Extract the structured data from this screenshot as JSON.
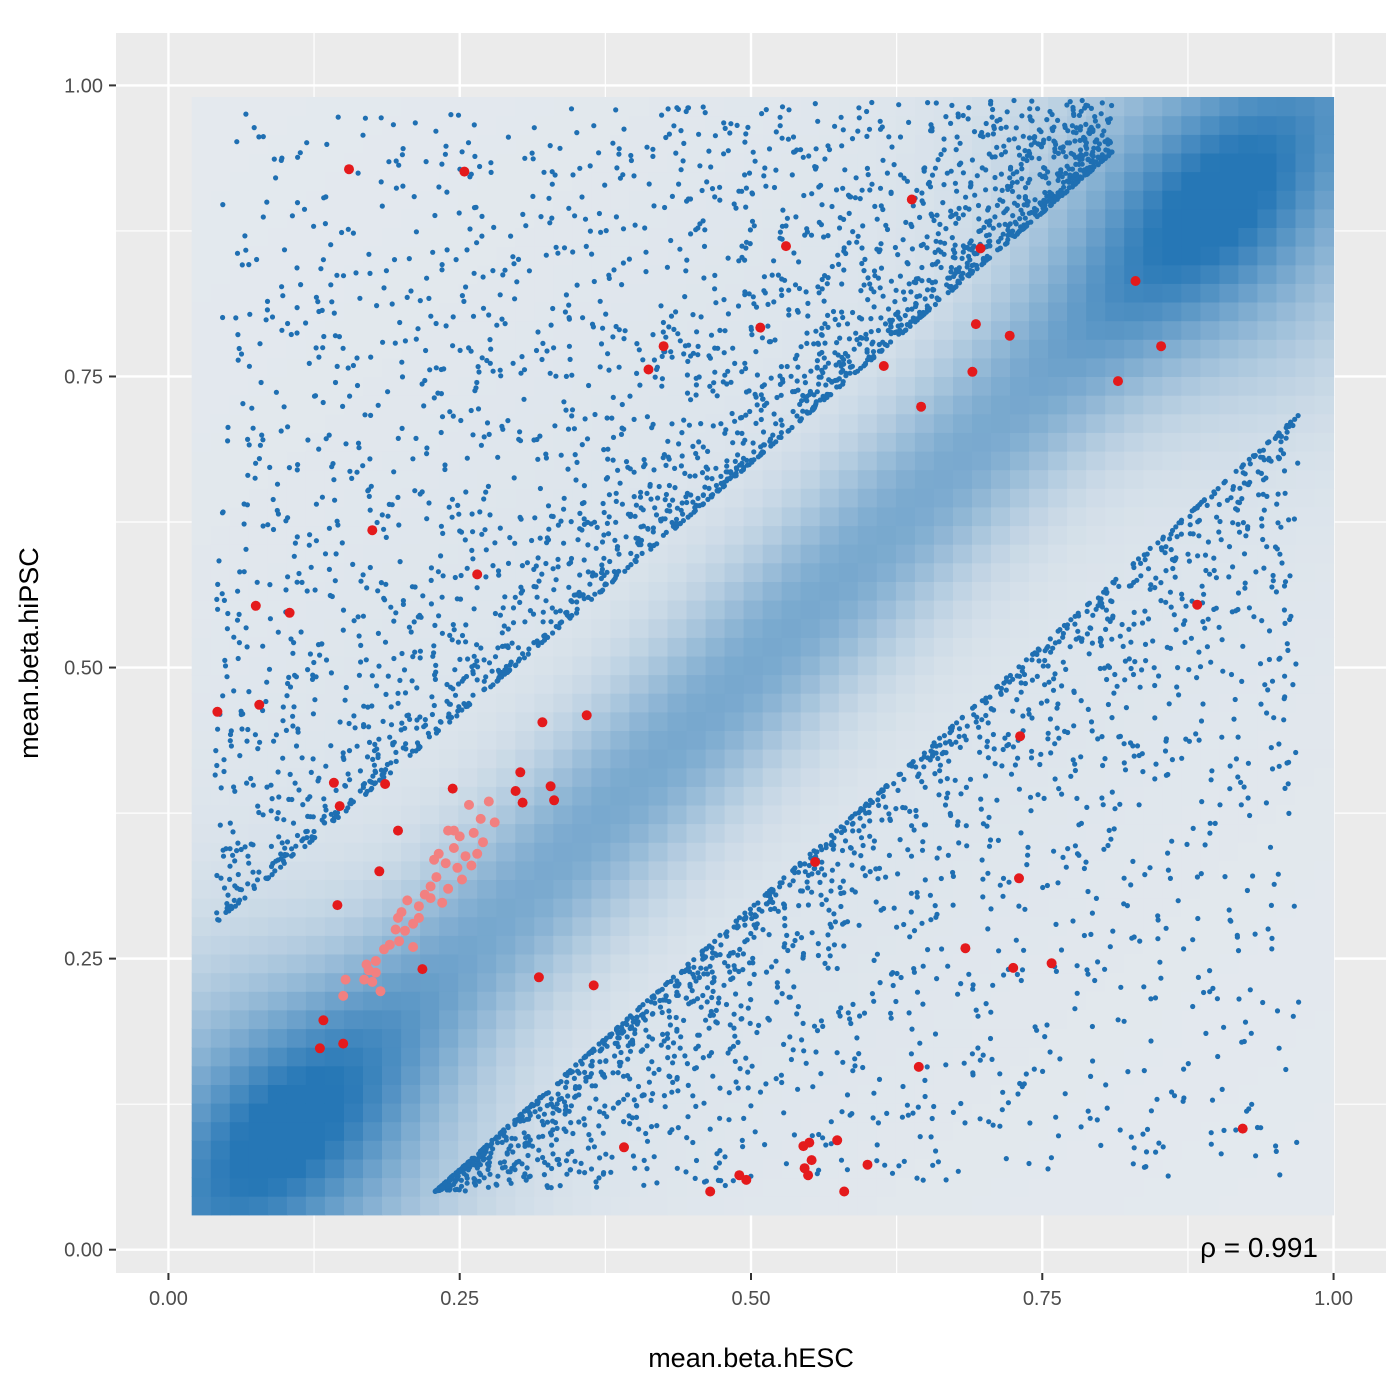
{
  "chart_data": {
    "type": "scatter",
    "title": "",
    "xlabel": "mean.beta.hESC",
    "ylabel": "mean.beta.hiPSC",
    "xlim": [
      -0.045,
      1.045
    ],
    "ylim": [
      -0.02,
      1.045
    ],
    "x_ticks": [
      0.0,
      0.25,
      0.5,
      0.75,
      1.0
    ],
    "x_tick_labels": [
      "0.00",
      "0.25",
      "0.50",
      "0.75",
      "1.00"
    ],
    "y_ticks": [
      0.0,
      0.25,
      0.5,
      0.75,
      1.0
    ],
    "y_tick_labels": [
      "0.00",
      "0.25",
      "0.50",
      "0.75",
      "1.00"
    ],
    "grid": true,
    "legend": "none",
    "annotation": {
      "text": "ρ = 0.991",
      "position": "bottom-right"
    },
    "density_background": {
      "description": "2D density of all probes shown as blue heat tiles",
      "x_range": [
        0.02,
        1.0
      ],
      "y_range": [
        0.03,
        0.99
      ],
      "peaks": [
        [
          0.1,
          0.1
        ],
        [
          0.9,
          0.9
        ]
      ],
      "color_low": "#e4e9ee",
      "color_high": "#2677b6"
    },
    "colors": {
      "panel_background": "#ebebeb",
      "grid": "#ffffff",
      "blue_points": "#1f6fb2",
      "red_points": "#e41a1c",
      "pink_points": "#f28080"
    },
    "series": [
      {
        "name": "",
        "color": "#1f6fb2",
        "note": "points above diagonal band (sampled representation)",
        "region": "upper",
        "approx_count": 2600
      },
      {
        "name": "",
        "color": "#1f6fb2",
        "note": "points below diagonal band (sampled representation)",
        "region": "lower",
        "approx_count": 2000
      },
      {
        "name": "",
        "color": "#e41a1c",
        "points": [
          [
            0.155,
            0.928
          ],
          [
            0.254,
            0.926
          ],
          [
            0.638,
            0.902
          ],
          [
            0.53,
            0.862
          ],
          [
            0.697,
            0.86
          ],
          [
            0.83,
            0.832
          ],
          [
            0.508,
            0.792
          ],
          [
            0.693,
            0.795
          ],
          [
            0.722,
            0.785
          ],
          [
            0.852,
            0.776
          ],
          [
            0.425,
            0.776
          ],
          [
            0.412,
            0.756
          ],
          [
            0.614,
            0.759
          ],
          [
            0.69,
            0.754
          ],
          [
            0.815,
            0.746
          ],
          [
            0.646,
            0.724
          ],
          [
            0.175,
            0.618
          ],
          [
            0.265,
            0.58
          ],
          [
            0.075,
            0.553
          ],
          [
            0.104,
            0.547
          ],
          [
            0.883,
            0.554
          ],
          [
            0.042,
            0.462
          ],
          [
            0.078,
            0.468
          ],
          [
            0.359,
            0.459
          ],
          [
            0.321,
            0.453
          ],
          [
            0.731,
            0.441
          ],
          [
            0.142,
            0.401
          ],
          [
            0.186,
            0.4
          ],
          [
            0.244,
            0.396
          ],
          [
            0.302,
            0.41
          ],
          [
            0.298,
            0.394
          ],
          [
            0.328,
            0.398
          ],
          [
            0.331,
            0.386
          ],
          [
            0.304,
            0.384
          ],
          [
            0.147,
            0.381
          ],
          [
            0.555,
            0.333
          ],
          [
            0.197,
            0.36
          ],
          [
            0.181,
            0.325
          ],
          [
            0.73,
            0.319
          ],
          [
            0.145,
            0.296
          ],
          [
            0.684,
            0.259
          ],
          [
            0.725,
            0.242
          ],
          [
            0.758,
            0.246
          ],
          [
            0.218,
            0.241
          ],
          [
            0.318,
            0.234
          ],
          [
            0.365,
            0.227
          ],
          [
            0.133,
            0.197
          ],
          [
            0.15,
            0.177
          ],
          [
            0.13,
            0.173
          ],
          [
            0.644,
            0.157
          ],
          [
            0.922,
            0.104
          ],
          [
            0.391,
            0.088
          ],
          [
            0.574,
            0.094
          ],
          [
            0.55,
            0.092
          ],
          [
            0.545,
            0.089
          ],
          [
            0.6,
            0.073
          ],
          [
            0.546,
            0.07
          ],
          [
            0.552,
            0.077
          ],
          [
            0.549,
            0.064
          ],
          [
            0.49,
            0.064
          ],
          [
            0.496,
            0.06
          ],
          [
            0.465,
            0.05
          ],
          [
            0.58,
            0.05
          ]
        ]
      },
      {
        "name": "",
        "color": "#f28080",
        "points": [
          [
            0.24,
            0.36
          ],
          [
            0.25,
            0.355
          ],
          [
            0.262,
            0.358
          ],
          [
            0.245,
            0.345
          ],
          [
            0.232,
            0.34
          ],
          [
            0.255,
            0.338
          ],
          [
            0.27,
            0.35
          ],
          [
            0.268,
            0.37
          ],
          [
            0.275,
            0.385
          ],
          [
            0.258,
            0.382
          ],
          [
            0.26,
            0.33
          ],
          [
            0.248,
            0.328
          ],
          [
            0.238,
            0.332
          ],
          [
            0.23,
            0.32
          ],
          [
            0.225,
            0.312
          ],
          [
            0.24,
            0.31
          ],
          [
            0.252,
            0.318
          ],
          [
            0.235,
            0.298
          ],
          [
            0.225,
            0.302
          ],
          [
            0.215,
            0.295
          ],
          [
            0.205,
            0.3
          ],
          [
            0.2,
            0.29
          ],
          [
            0.197,
            0.285
          ],
          [
            0.21,
            0.28
          ],
          [
            0.203,
            0.274
          ],
          [
            0.195,
            0.275
          ],
          [
            0.21,
            0.26
          ],
          [
            0.19,
            0.262
          ],
          [
            0.185,
            0.258
          ],
          [
            0.178,
            0.248
          ],
          [
            0.17,
            0.245
          ],
          [
            0.178,
            0.238
          ],
          [
            0.175,
            0.23
          ],
          [
            0.168,
            0.232
          ],
          [
            0.182,
            0.222
          ],
          [
            0.152,
            0.232
          ],
          [
            0.15,
            0.218
          ],
          [
            0.22,
            0.305
          ],
          [
            0.265,
            0.34
          ],
          [
            0.28,
            0.367
          ],
          [
            0.245,
            0.36
          ],
          [
            0.228,
            0.335
          ],
          [
            0.215,
            0.285
          ],
          [
            0.198,
            0.265
          ],
          [
            0.172,
            0.24
          ]
        ]
      }
    ]
  }
}
